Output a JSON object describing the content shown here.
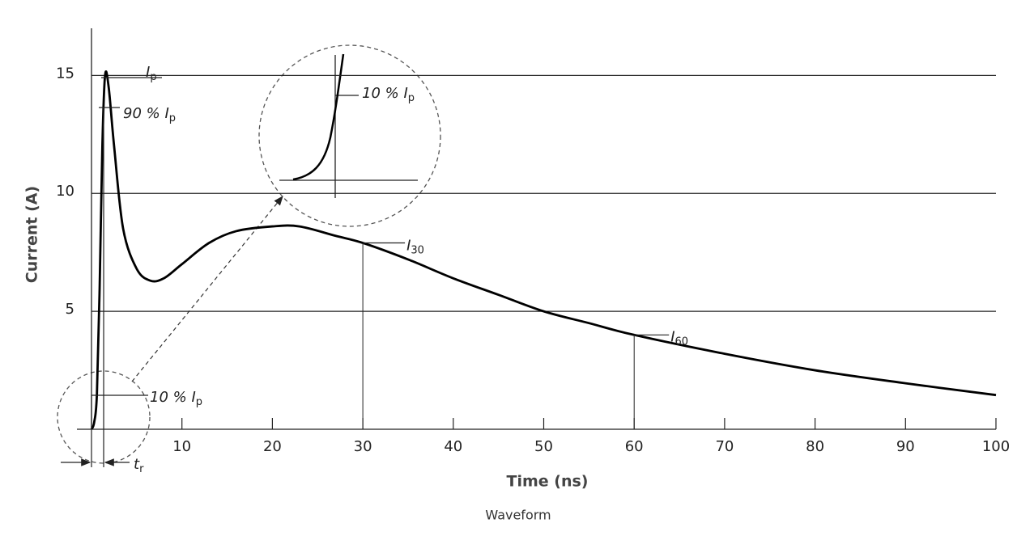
{
  "chart_data": {
    "type": "line",
    "caption": "Waveform",
    "xlabel": "Time (ns)",
    "ylabel": "Current (A)",
    "x": [
      0,
      0.3,
      0.6,
      0.9,
      1.2,
      1.5,
      1.9,
      2.5,
      3.5,
      5,
      6.5,
      8,
      10,
      13,
      16,
      20,
      23,
      27,
      30,
      35,
      40,
      45,
      50,
      55,
      60,
      70,
      80,
      90,
      100
    ],
    "values": [
      0,
      0.3,
      1.5,
      6,
      12,
      15,
      14.5,
      12,
      8.5,
      6.8,
      6.3,
      6.4,
      7.0,
      7.9,
      8.4,
      8.6,
      8.6,
      8.2,
      7.9,
      7.2,
      6.4,
      5.7,
      5.0,
      4.5,
      4.0,
      3.2,
      2.5,
      1.95,
      1.45
    ],
    "color": "#000000",
    "xlim": [
      0,
      100
    ],
    "xticks": [
      10,
      20,
      30,
      40,
      50,
      60,
      70,
      80,
      90,
      100
    ],
    "ylim": [
      0,
      17
    ],
    "yticks": [
      5,
      10,
      15
    ],
    "grid": true,
    "annotations": [
      {
        "text": "I",
        "sub": "p"
      },
      {
        "text": "90 % I",
        "sub": "p"
      },
      {
        "text": "10 % I",
        "sub": "p"
      },
      {
        "text": "I",
        "sub": "30"
      },
      {
        "text": "I",
        "sub": "60"
      },
      {
        "text": "t",
        "sub": "r"
      },
      {
        "text": "10 % I",
        "sub": "p"
      }
    ]
  }
}
